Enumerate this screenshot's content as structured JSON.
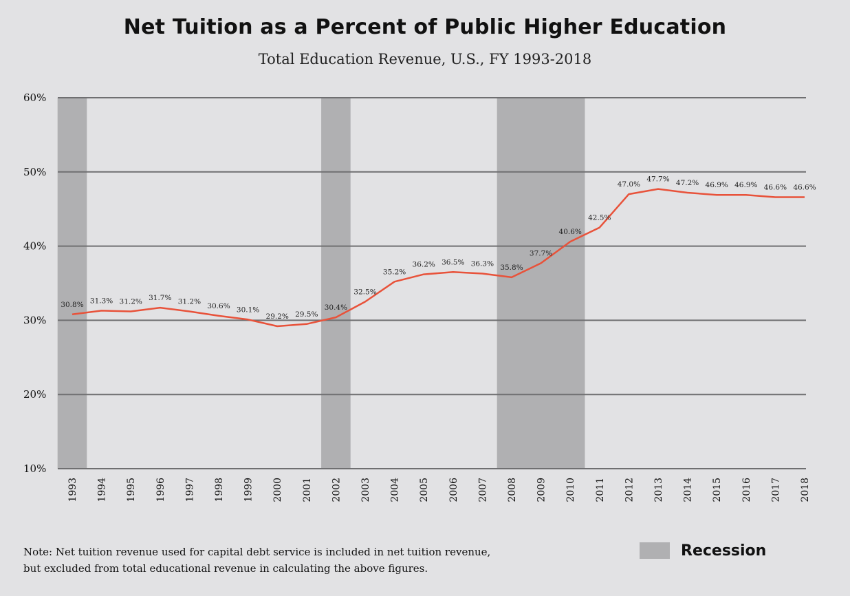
{
  "chart_data": {
    "type": "line",
    "title": "Net Tuition as a Percent of Public Higher Education",
    "subtitle": "Total Education Revenue, U.S., FY 1993-2018",
    "categories": [
      "1993",
      "1994",
      "1995",
      "1996",
      "1997",
      "1998",
      "1999",
      "2000",
      "2001",
      "2002",
      "2003",
      "2004",
      "2005",
      "2006",
      "2007",
      "2008",
      "2009",
      "2010",
      "2011",
      "2012",
      "2013",
      "2014",
      "2015",
      "2016",
      "2017",
      "2018"
    ],
    "series": [
      {
        "values": [
          30.8,
          31.3,
          31.2,
          31.7,
          31.2,
          30.6,
          30.1,
          29.2,
          29.5,
          30.4,
          32.5,
          35.2,
          36.2,
          36.5,
          36.3,
          35.8,
          37.7,
          40.6,
          42.5,
          47.0,
          47.7,
          47.2,
          46.9,
          46.9,
          46.6,
          46.6
        ],
        "data_labels": [
          "30.8%",
          "31.3%",
          "31.2%",
          "31.7%",
          "31.2%",
          "30.6%",
          "30.1%",
          "29.2%",
          "29.5%",
          "30.4%",
          "32.5%",
          "35.2%",
          "36.2%",
          "36.5%",
          "36.3%",
          "35.8%",
          "37.7%",
          "40.6%",
          "42.5%",
          "47.0%",
          "47.7%",
          "47.2%",
          "46.9%",
          "46.9%",
          "46.6%",
          "46.6%"
        ],
        "color": "#e8523a"
      }
    ],
    "recession_periods": [
      {
        "start": "1993",
        "end": "1993"
      },
      {
        "start": "2002",
        "end": "2002"
      },
      {
        "start": "2008",
        "end": "2010"
      }
    ],
    "ylim": [
      10,
      60
    ],
    "yticks": [
      "10%",
      "20%",
      "30%",
      "40%",
      "50%",
      "60%"
    ],
    "ytick_values": [
      10,
      20,
      30,
      40,
      50,
      60
    ],
    "grid": true,
    "legend": {
      "label": "Recession",
      "placement": "bottom-right",
      "color": "#b0b0b2"
    }
  },
  "note": {
    "line1": "Note: Net tuition revenue used for capital debt service is included in net tuition revenue,",
    "line2": "but excluded from total educational revenue in calculating the above figures."
  },
  "colors": {
    "background": "#e2e2e4",
    "gridline": "#6f6f71",
    "recession": "#b0b0b2",
    "line": "#e8523a"
  }
}
